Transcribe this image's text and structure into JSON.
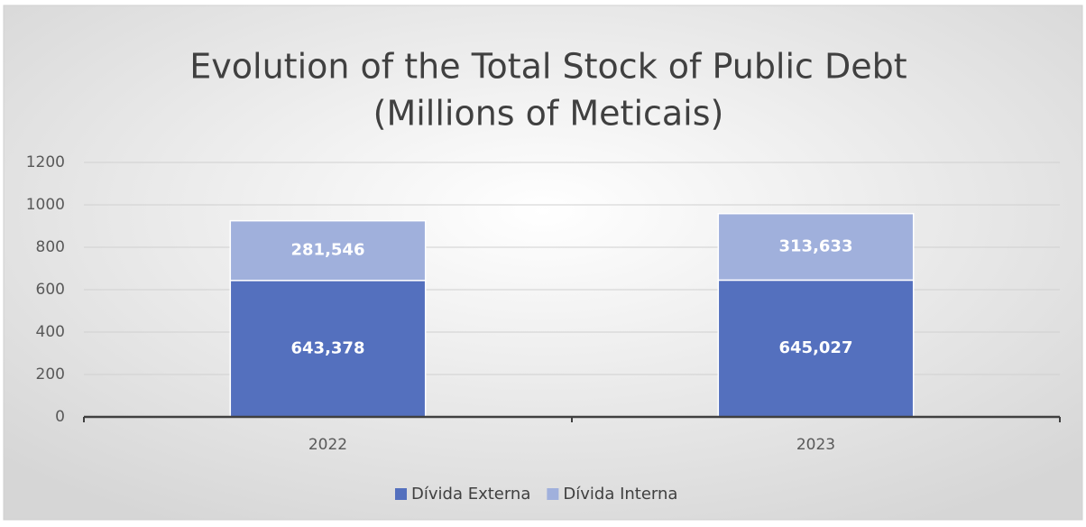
{
  "chart_data": {
    "type": "stacked_bar",
    "title": [
      "Evolution of the Total Stock of Public Debt",
      "(Millions of Meticais)"
    ],
    "categories": [
      "2022",
      "2023"
    ],
    "series": [
      {
        "name": "Dívida Externa",
        "color": "#5470be",
        "values": [
          643.378,
          645.027
        ],
        "value_labels": [
          "643,378",
          "645,027"
        ]
      },
      {
        "name": "Dívida Interna",
        "color": "#a0b0dc",
        "values": [
          281.546,
          313.633
        ],
        "value_labels": [
          "281,546",
          "313,633"
        ]
      }
    ],
    "ylim": [
      0,
      1200
    ],
    "yticks": [
      0,
      200,
      400,
      600,
      800,
      1000,
      1200
    ],
    "grid": true,
    "legend": "bottom"
  }
}
